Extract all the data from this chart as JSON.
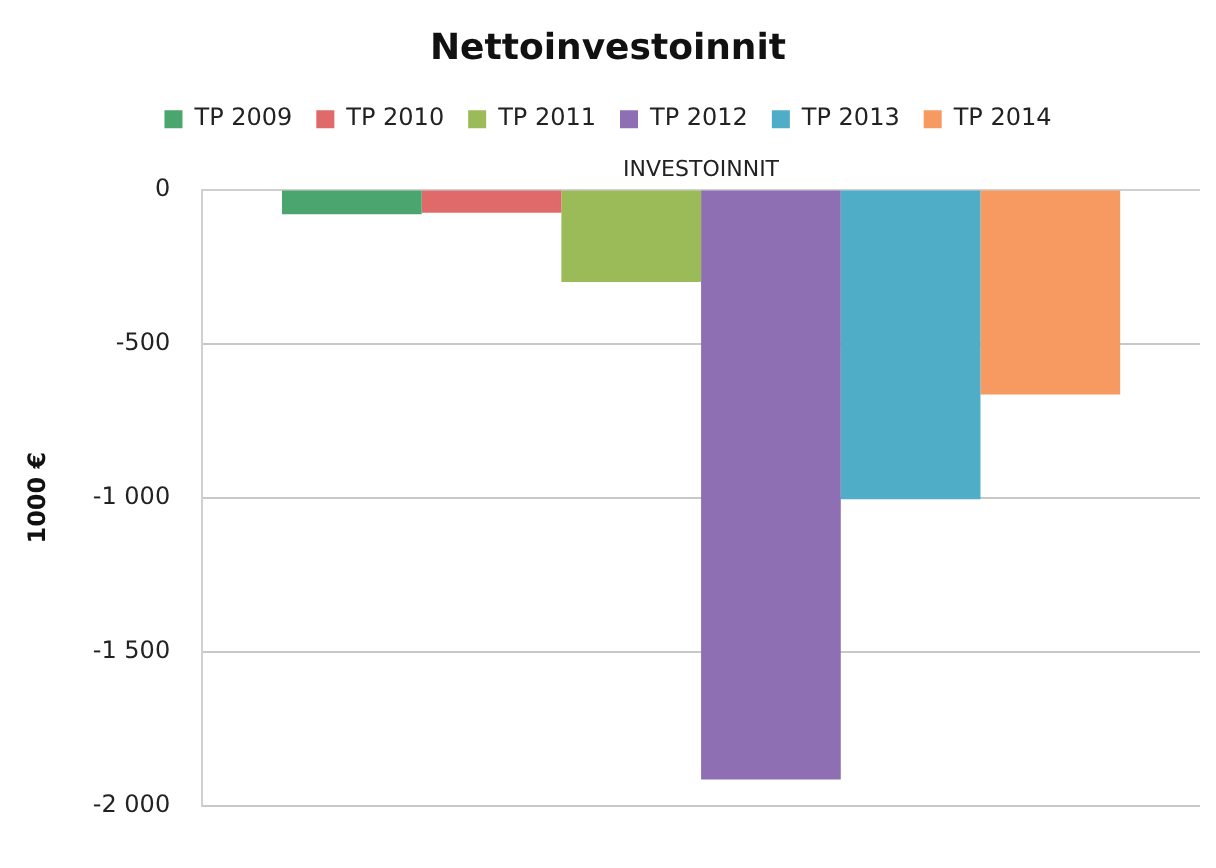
{
  "chart_data": {
    "type": "bar",
    "title": "Nettoinvestoinnit",
    "ylabel": "1000 €",
    "categories": [
      "INVESTOINNIT"
    ],
    "series": [
      {
        "name": "TP 2009",
        "color": "#4aa56e",
        "values": [
          -80
        ]
      },
      {
        "name": "TP 2010",
        "color": "#e06a6a",
        "values": [
          -75
        ]
      },
      {
        "name": "TP 2011",
        "color": "#9bbb59",
        "values": [
          -300
        ]
      },
      {
        "name": "TP 2012",
        "color": "#8e6fb3",
        "values": [
          -1915
        ]
      },
      {
        "name": "TP 2013",
        "color": "#4fadc8",
        "values": [
          -1005
        ]
      },
      {
        "name": "TP 2014",
        "color": "#f79a62",
        "values": [
          -665
        ]
      }
    ],
    "ylim": [
      -2000,
      0
    ],
    "yticks": [
      0,
      -500,
      {
        "value": -1000,
        "label": "-1 000"
      },
      {
        "value": -1500,
        "label": "-1 500"
      },
      {
        "value": -2000,
        "label": "-2 000"
      }
    ],
    "grid": "y",
    "legend": "top"
  }
}
